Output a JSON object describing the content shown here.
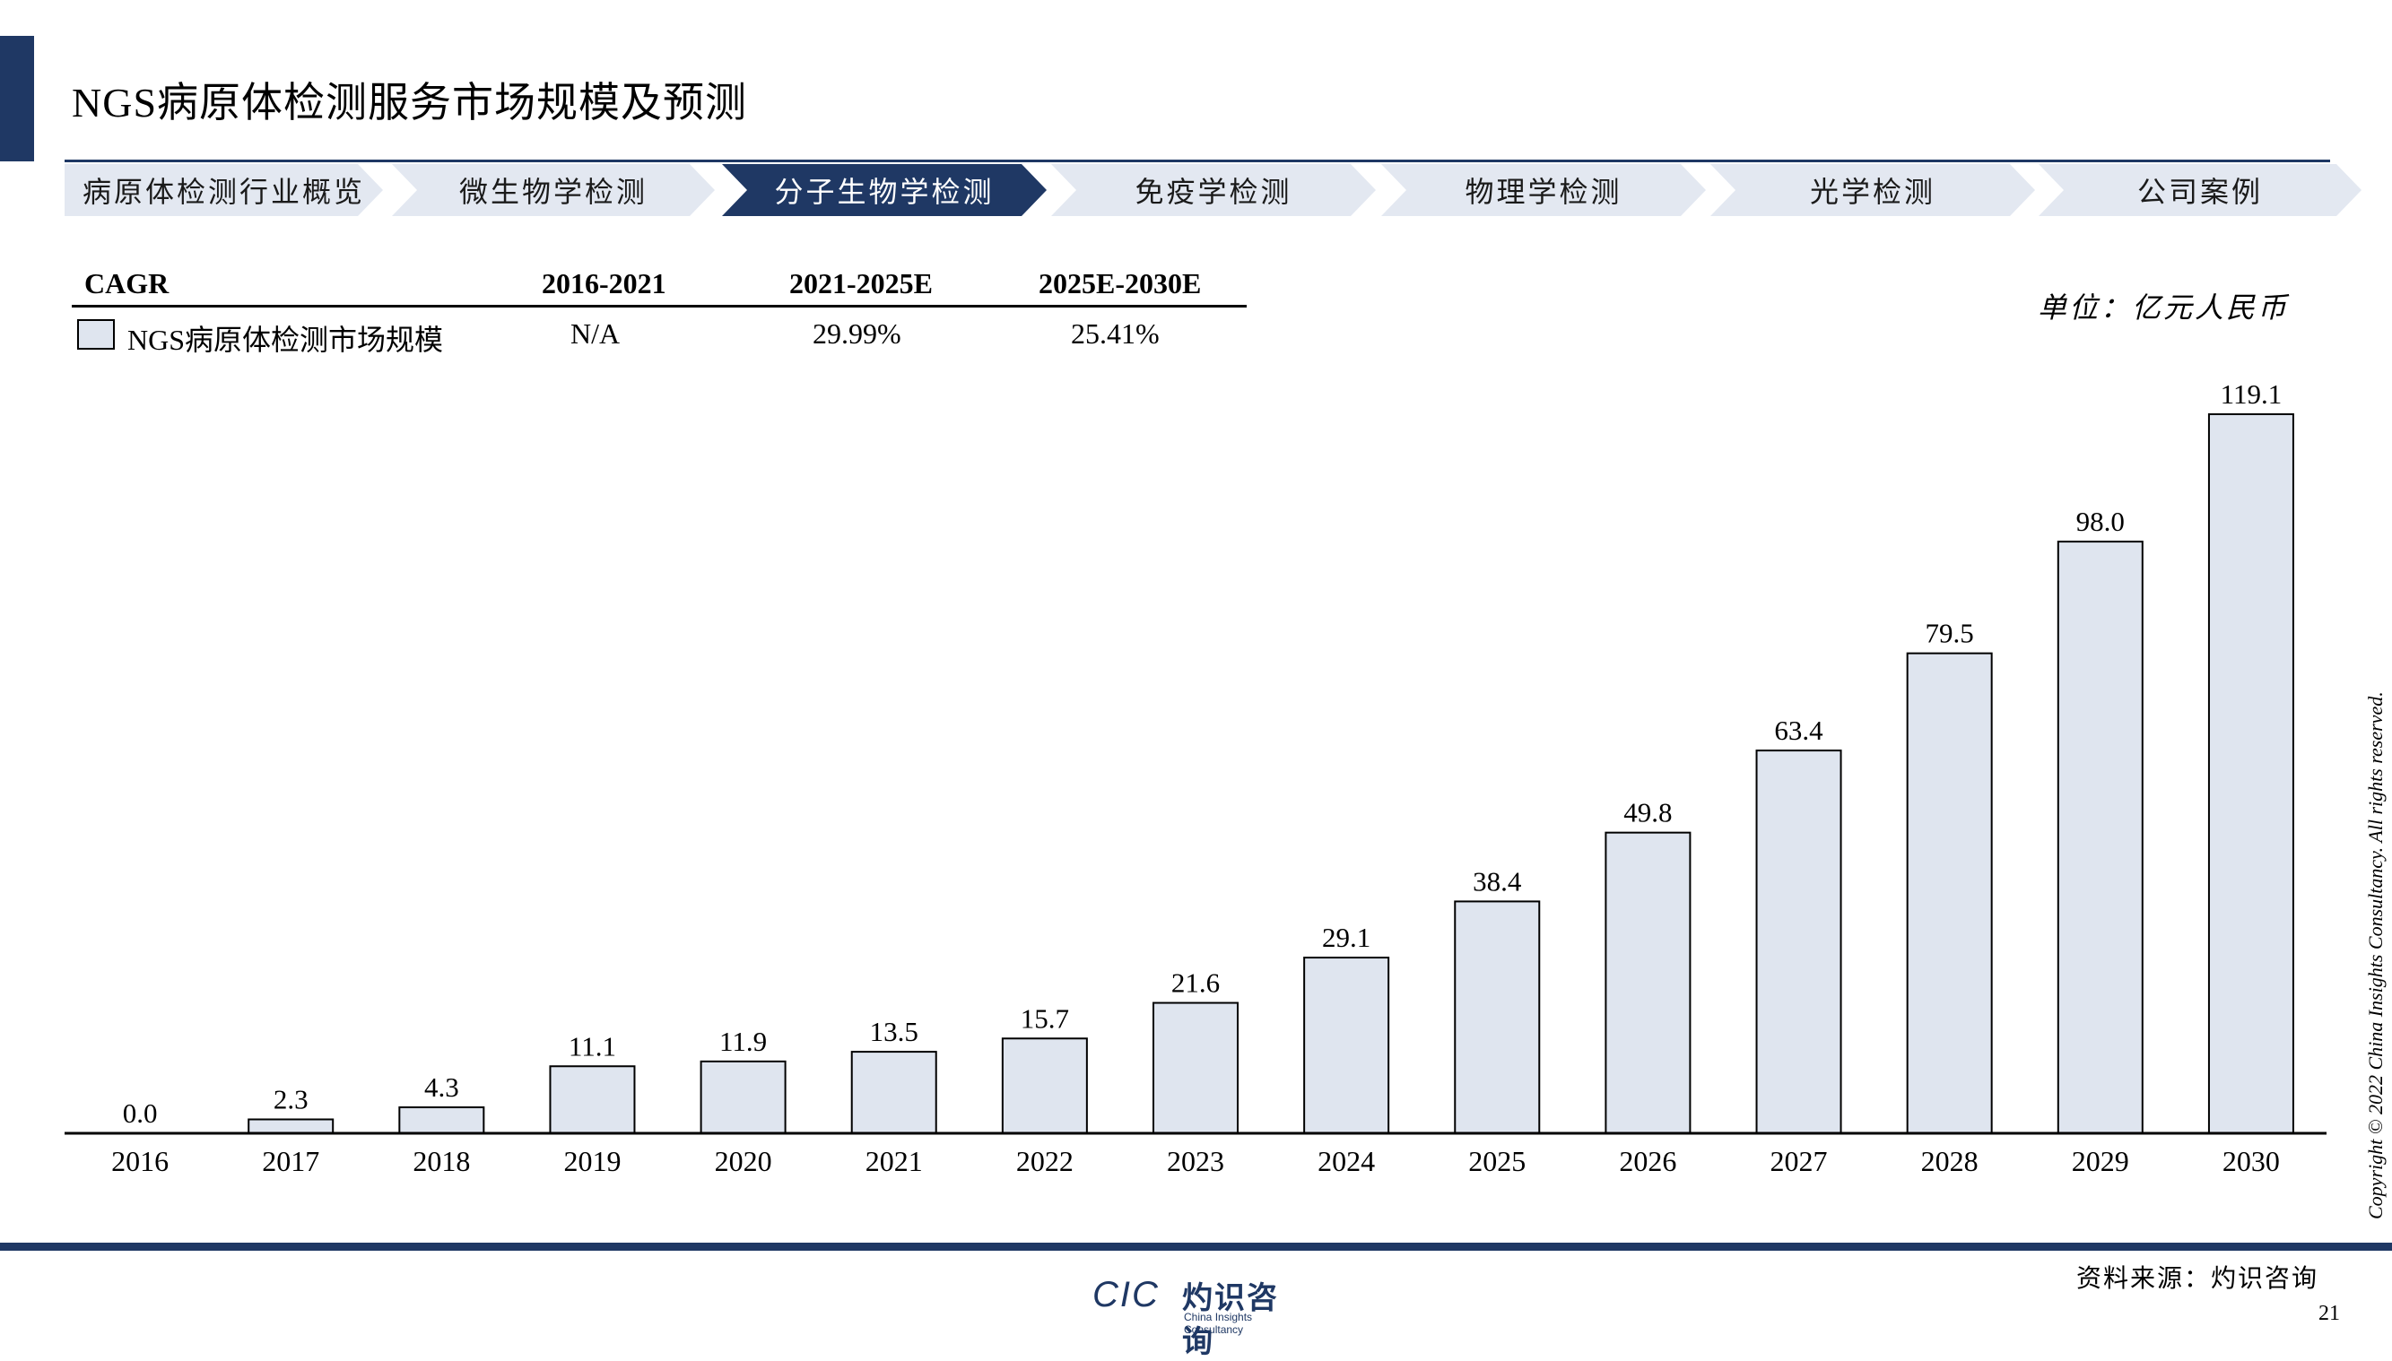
{
  "page": {
    "title": "NGS病原体检测服务市场规模及预测",
    "unit": "单位：亿元人民币",
    "source": "资料来源：灼识咨询",
    "page_number": "21",
    "copyright": "Copyright © 2022 China Insights Consultancy. All rights reserved."
  },
  "nav": {
    "tabs": [
      {
        "label": "病原体检测行业概览",
        "active": false
      },
      {
        "label": "微生物学检测",
        "active": false
      },
      {
        "label": "分子生物学检测",
        "active": true
      },
      {
        "label": "免疫学检测",
        "active": false
      },
      {
        "label": "物理学检测",
        "active": false
      },
      {
        "label": "光学检测",
        "active": false
      },
      {
        "label": "公司案例",
        "active": false
      }
    ]
  },
  "cagr_table": {
    "header": [
      "CAGR",
      "2016-2021",
      "2021-2025E",
      "2025E-2030E"
    ],
    "rows": [
      {
        "label": "NGS病原体检测市场规模",
        "values": [
          "N/A",
          "29.99%",
          "25.41%"
        ]
      }
    ]
  },
  "logo": {
    "mark": "CIC",
    "name_cn": "灼识咨询",
    "name_en": "China Insights Consultancy"
  },
  "colors": {
    "brand": "#1f3864",
    "bar_fill": "#dfe5ef",
    "bar_stroke": "#000000"
  },
  "chart_data": {
    "type": "bar",
    "categories": [
      "2016",
      "2017",
      "2018",
      "2019",
      "2020",
      "2021",
      "2022",
      "2023",
      "2024",
      "2025",
      "2026",
      "2027",
      "2028",
      "2029",
      "2030"
    ],
    "values": [
      0.0,
      2.3,
      4.3,
      11.1,
      11.9,
      13.5,
      15.7,
      21.6,
      29.1,
      38.4,
      49.8,
      63.4,
      79.5,
      98.0,
      119.1
    ],
    "labels": [
      "0.0",
      "2.3",
      "4.3",
      "11.1",
      "11.9",
      "13.5",
      "15.7",
      "21.6",
      "29.1",
      "38.4",
      "49.8",
      "63.4",
      "79.5",
      "98.0",
      "119.1"
    ],
    "series": [
      {
        "name": "NGS病原体检测市场规模",
        "values": [
          0.0,
          2.3,
          4.3,
          11.1,
          11.9,
          13.5,
          15.7,
          21.6,
          29.1,
          38.4,
          49.8,
          63.4,
          79.5,
          98.0,
          119.1
        ]
      }
    ],
    "ylim": [
      0,
      119.1
    ],
    "grid": false,
    "y_axis_visible": false
  }
}
